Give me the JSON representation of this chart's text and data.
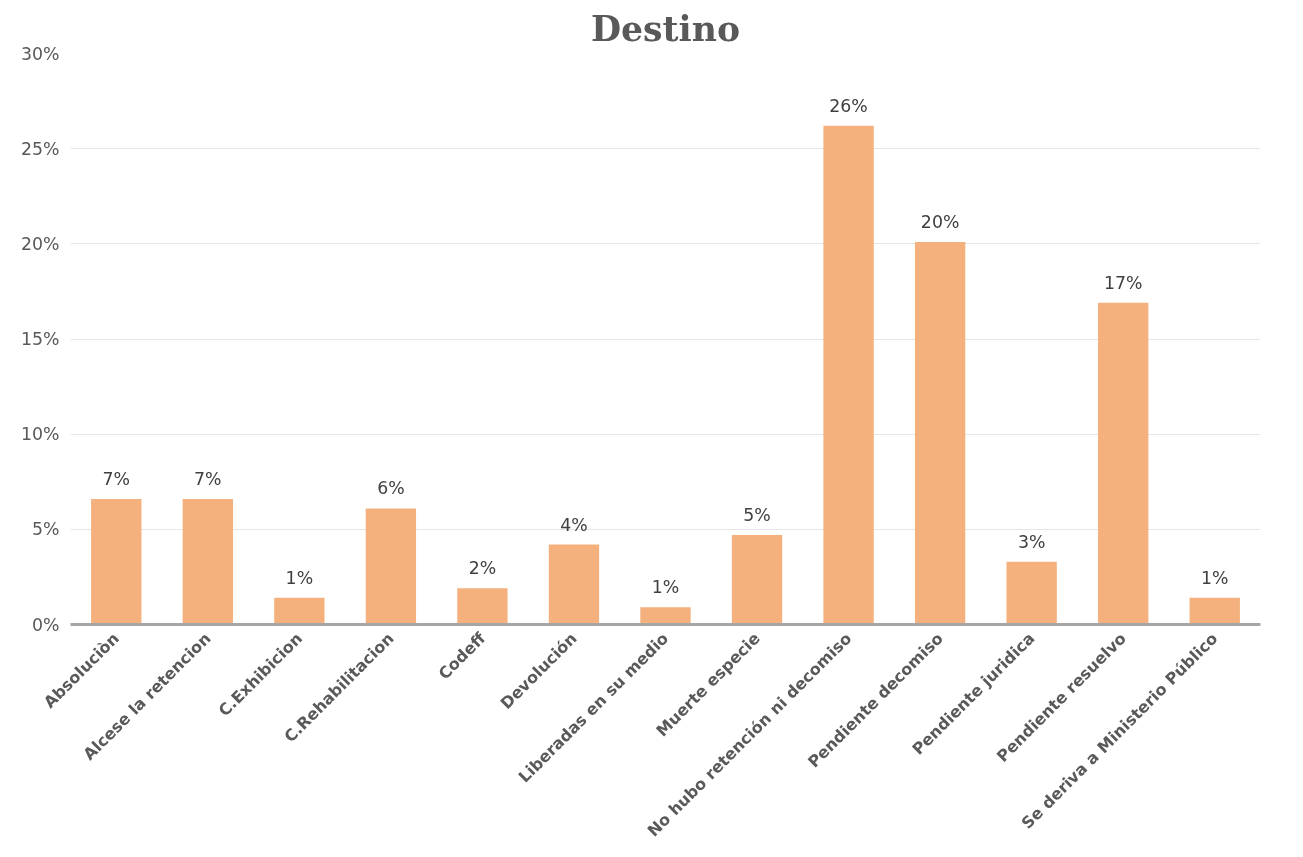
{
  "chart_data": {
    "type": "bar",
    "title": "Destino",
    "categories": [
      "Absoluciòn",
      "Alcese la retencion",
      "C.Exhibicion",
      "C.Rehabilitacion",
      "Codeff",
      "Devolución",
      "Liberadas en su medio",
      "Muerte especie",
      "No hubo retención ni decomiso",
      "Pendiente decomiso",
      "Pendiente juridica",
      "Pendiente resuelvo",
      "Se deriva a Ministerio Público"
    ],
    "values": [
      6.6,
      6.6,
      1.4,
      6.1,
      1.9,
      4.2,
      0.9,
      4.7,
      26.2,
      20.1,
      3.3,
      16.9,
      1.4
    ],
    "value_labels": [
      "7%",
      "7%",
      "1%",
      "6%",
      "2%",
      "4%",
      "1%",
      "5%",
      "26%",
      "20%",
      "3%",
      "17%",
      "1%"
    ],
    "color": "#f4b17d",
    "ylim": [
      0,
      30
    ],
    "yticks": [
      {
        "value": 0,
        "label": "0%"
      },
      {
        "value": 5,
        "label": "5%"
      },
      {
        "value": 10,
        "label": "10%"
      },
      {
        "value": 15,
        "label": "15%"
      },
      {
        "value": 20,
        "label": "20%"
      },
      {
        "value": 25,
        "label": "25%"
      },
      {
        "value": 30,
        "label": "30%"
      }
    ],
    "grid": "y"
  }
}
